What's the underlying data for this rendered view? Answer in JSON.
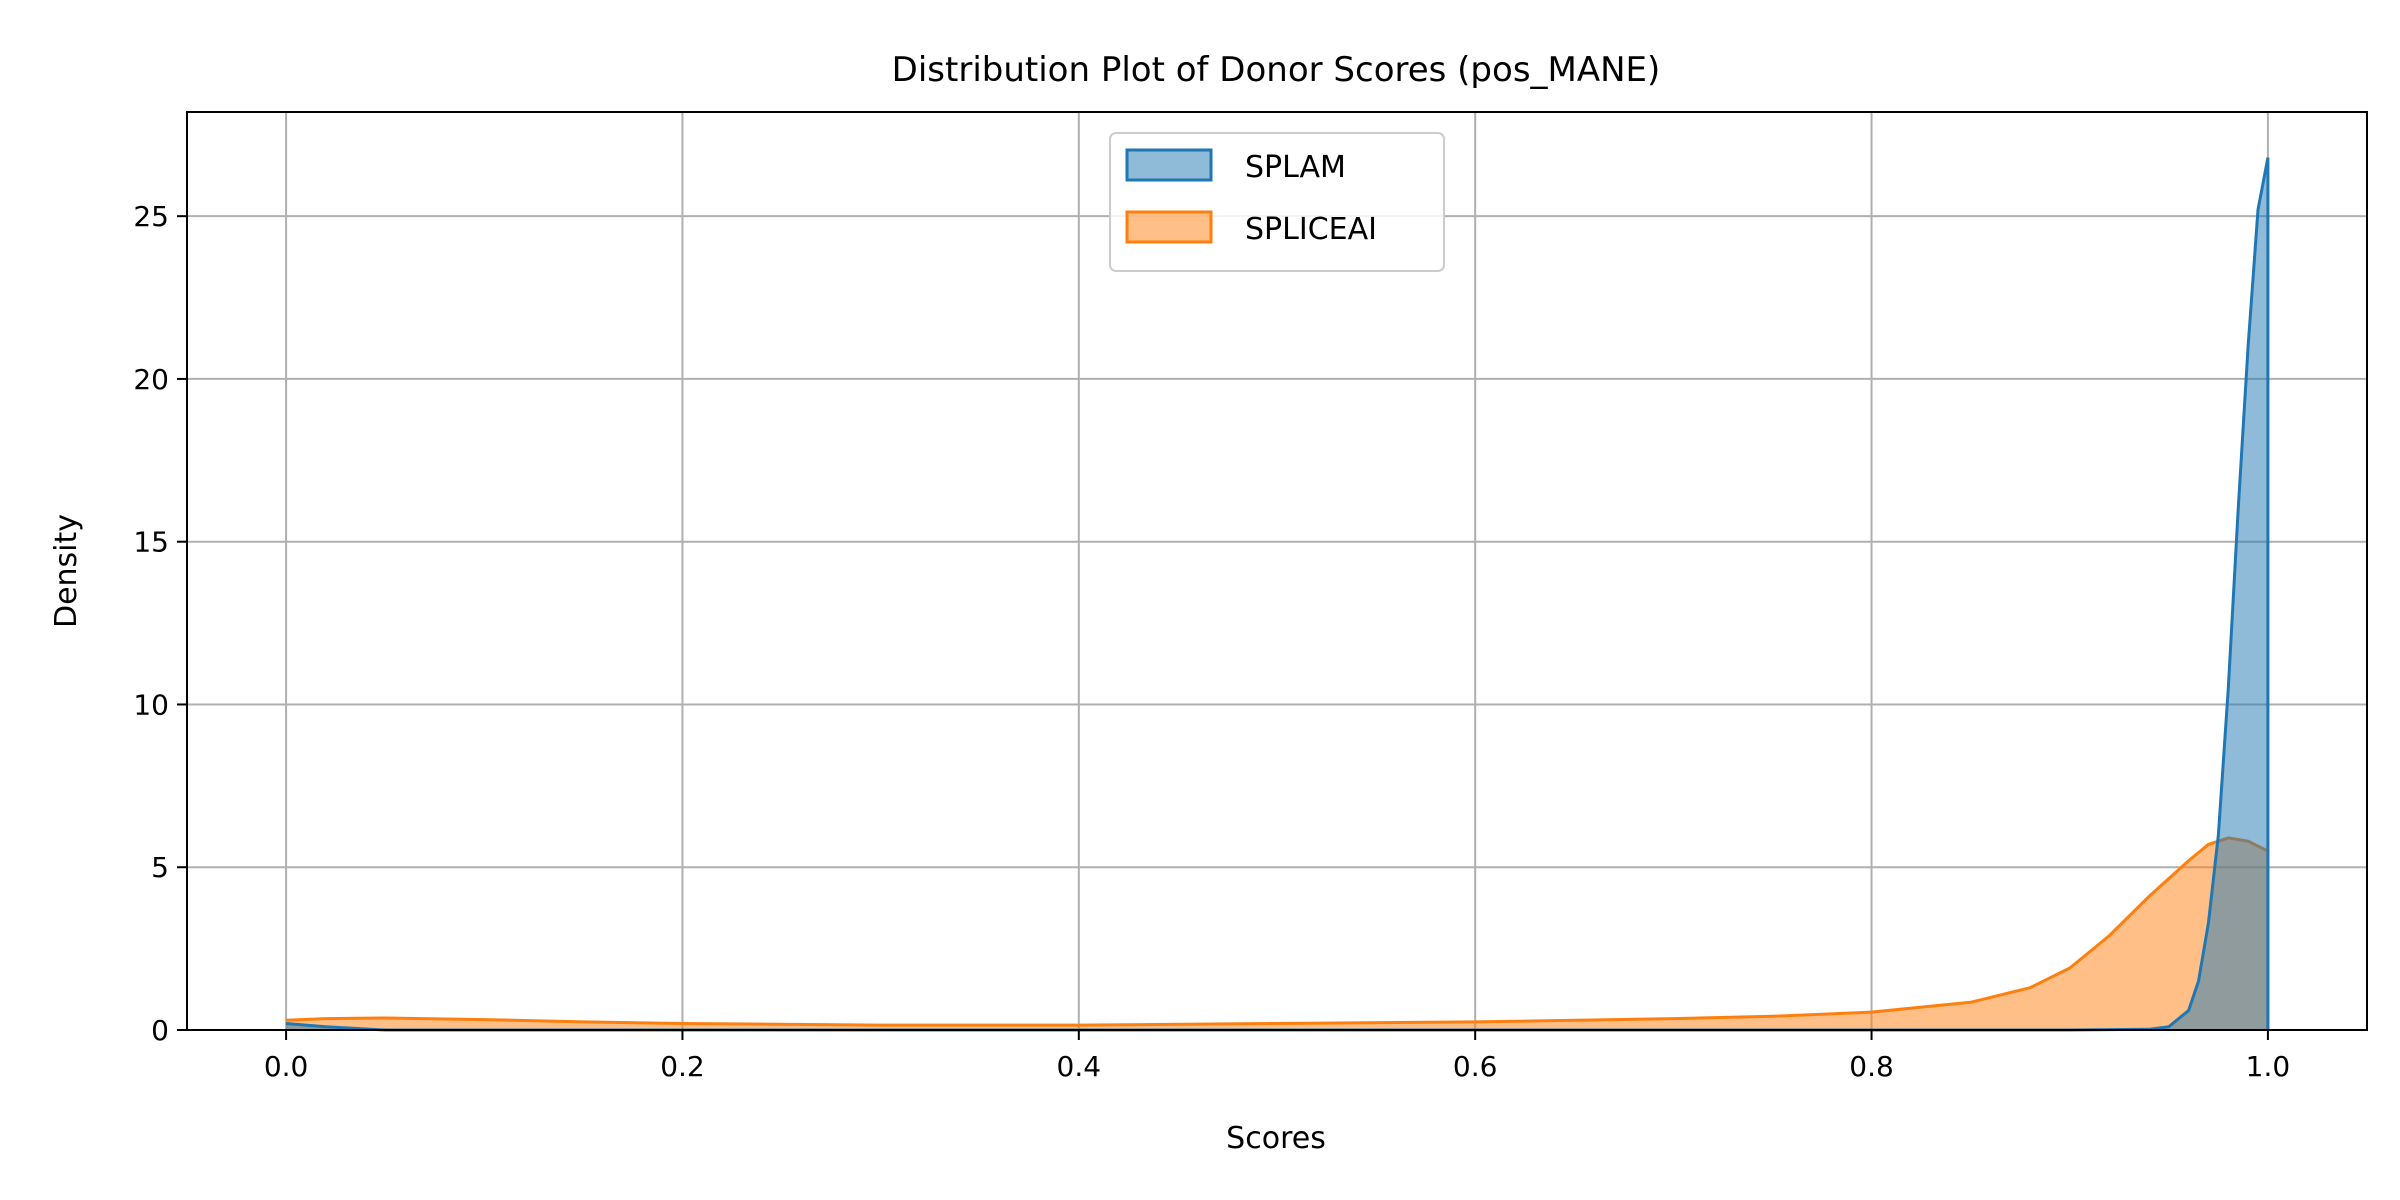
{
  "chart_data": {
    "type": "area",
    "title": "Distribution Plot of Donor Scores (pos_MANE)",
    "xlabel": "Scores",
    "ylabel": "Density",
    "xlim": [
      -0.05,
      1.05
    ],
    "ylim": [
      0,
      28.2
    ],
    "x_ticks": [
      "0.0",
      "0.2",
      "0.4",
      "0.6",
      "0.8",
      "1.0"
    ],
    "y_ticks": [
      "0",
      "5",
      "10",
      "15",
      "20",
      "25"
    ],
    "grid": true,
    "legend_position": "top-center",
    "series": [
      {
        "name": "SPLAM",
        "color": "#1f77b4",
        "points": [
          [
            0.0,
            0.2
          ],
          [
            0.02,
            0.1
          ],
          [
            0.05,
            0.0
          ],
          [
            0.9,
            0.0
          ],
          [
            0.94,
            0.02
          ],
          [
            0.95,
            0.1
          ],
          [
            0.96,
            0.6
          ],
          [
            0.965,
            1.5
          ],
          [
            0.97,
            3.3
          ],
          [
            0.975,
            6.0
          ],
          [
            0.98,
            10.5
          ],
          [
            0.985,
            16.0
          ],
          [
            0.99,
            21.0
          ],
          [
            0.995,
            25.2
          ],
          [
            1.0,
            26.8
          ],
          [
            1.0,
            0.0
          ]
        ]
      },
      {
        "name": "SPLICEAI",
        "color": "#ff7f0e",
        "points": [
          [
            0.0,
            0.3
          ],
          [
            0.02,
            0.35
          ],
          [
            0.05,
            0.37
          ],
          [
            0.1,
            0.32
          ],
          [
            0.15,
            0.25
          ],
          [
            0.2,
            0.2
          ],
          [
            0.3,
            0.15
          ],
          [
            0.4,
            0.15
          ],
          [
            0.5,
            0.2
          ],
          [
            0.6,
            0.25
          ],
          [
            0.7,
            0.35
          ],
          [
            0.75,
            0.42
          ],
          [
            0.8,
            0.55
          ],
          [
            0.85,
            0.85
          ],
          [
            0.88,
            1.3
          ],
          [
            0.9,
            1.9
          ],
          [
            0.92,
            2.9
          ],
          [
            0.94,
            4.1
          ],
          [
            0.96,
            5.2
          ],
          [
            0.97,
            5.7
          ],
          [
            0.98,
            5.9
          ],
          [
            0.99,
            5.8
          ],
          [
            1.0,
            5.5
          ],
          [
            1.0,
            0.0
          ]
        ]
      }
    ]
  }
}
